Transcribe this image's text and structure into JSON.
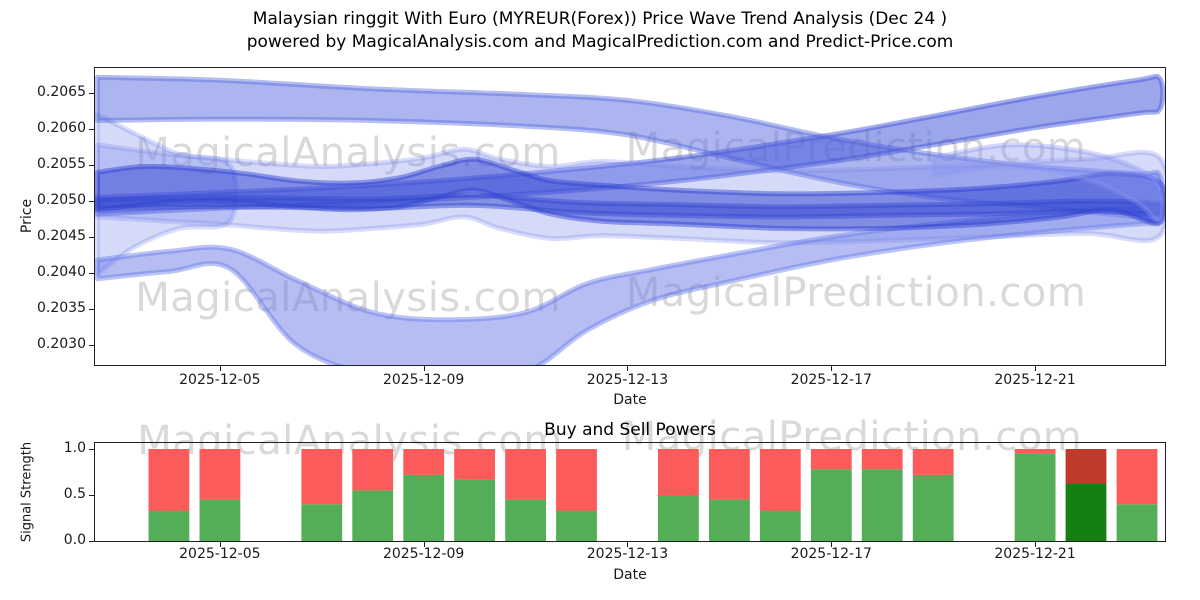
{
  "title": {
    "line1": "Malaysian ringgit With Euro (MYREUR(Forex)) Price Wave Trend Analysis (Dec 24 )",
    "line2": "powered by MagicalAnalysis.com and MagicalPrediction.com and Predict-Price.com"
  },
  "watermark": {
    "analysis": "MagicalAnalysis.com",
    "prediction": "MagicalPrediction.com"
  },
  "chart_data": [
    {
      "id": "price-wave-trend",
      "type": "area",
      "title": "",
      "xlabel": "Date",
      "ylabel": "Price",
      "x_domain_days": [
        2.55,
        23.55
      ],
      "ylim": [
        0.20272,
        0.20685
      ],
      "yticks": [
        0.203,
        0.2035,
        0.204,
        0.2045,
        0.205,
        0.2055,
        0.206,
        0.2065
      ],
      "xticks": [
        {
          "day": 5,
          "label": "2025-12-05"
        },
        {
          "day": 9,
          "label": "2025-12-09"
        },
        {
          "day": 13,
          "label": "2025-12-13"
        },
        {
          "day": 17,
          "label": "2025-12-17"
        },
        {
          "day": 21,
          "label": "2025-12-21"
        }
      ],
      "bands": [
        {
          "name": "left-fan",
          "color": "#7b8ced",
          "opacity": 0.32,
          "days": [
            2.6,
            3.3,
            4.2,
            5.2
          ],
          "hi": [
            0.2062,
            0.20595,
            0.20565,
            0.2055
          ],
          "lo": [
            0.20398,
            0.20435,
            0.20462,
            0.20472
          ]
        },
        {
          "name": "upper-descending",
          "color": "#5a6cdf",
          "opacity": 0.5,
          "days": [
            2.6,
            5,
            8,
            11,
            13,
            15,
            17,
            19,
            21,
            23,
            23.45
          ],
          "hi": [
            0.20672,
            0.20668,
            0.20656,
            0.20648,
            0.2064,
            0.20618,
            0.20588,
            0.20565,
            0.20548,
            0.20538,
            0.20535
          ],
          "lo": [
            0.20612,
            0.20614,
            0.20612,
            0.20604,
            0.20592,
            0.2056,
            0.20528,
            0.20505,
            0.20492,
            0.20478,
            0.20475
          ]
        },
        {
          "name": "ascending",
          "color": "#4a5cdb",
          "opacity": 0.55,
          "days": [
            2.6,
            5,
            8,
            11,
            14,
            17,
            19,
            21,
            23,
            23.45
          ],
          "hi": [
            0.20505,
            0.20512,
            0.20522,
            0.20538,
            0.2056,
            0.20592,
            0.20618,
            0.20645,
            0.20668,
            0.2067
          ],
          "lo": [
            0.20482,
            0.2049,
            0.20498,
            0.2051,
            0.20528,
            0.20555,
            0.20578,
            0.20602,
            0.20622,
            0.20628
          ]
        },
        {
          "name": "deep-dip",
          "color": "#6b7ce8",
          "opacity": 0.5,
          "days": [
            2.6,
            4,
            5.2,
            6.5,
            8,
            9.5,
            11,
            12.2,
            13.5,
            15,
            17,
            19,
            21,
            23,
            23.45
          ],
          "hi": [
            0.20418,
            0.2043,
            0.20433,
            0.2039,
            0.20345,
            0.20335,
            0.20345,
            0.20385,
            0.20405,
            0.20425,
            0.2045,
            0.20468,
            0.20482,
            0.20492,
            0.20493
          ],
          "lo": [
            0.20392,
            0.20402,
            0.20406,
            0.203,
            0.20258,
            0.2025,
            0.20262,
            0.2032,
            0.20362,
            0.20388,
            0.20418,
            0.2044,
            0.20456,
            0.20468,
            0.2047
          ]
        },
        {
          "name": "mid-cluster",
          "color": "#7583ea",
          "opacity": 0.3,
          "days": [
            2.6,
            4,
            5,
            6,
            7,
            8,
            9,
            9.8,
            10.5,
            11.5,
            12.5,
            14,
            16,
            18,
            20,
            22,
            23.45
          ],
          "hi": [
            0.20578,
            0.20565,
            0.20558,
            0.20552,
            0.20548,
            0.20552,
            0.2056,
            0.20572,
            0.20558,
            0.20548,
            0.20555,
            0.20548,
            0.20542,
            0.20545,
            0.2055,
            0.20558,
            0.2056
          ],
          "lo": [
            0.20478,
            0.20472,
            0.20468,
            0.20462,
            0.20458,
            0.20462,
            0.20468,
            0.20478,
            0.20462,
            0.20448,
            0.20452,
            0.20448,
            0.20442,
            0.20445,
            0.2045,
            0.20455,
            0.20452
          ]
        },
        {
          "name": "core",
          "color": "#2d3fd1",
          "opacity": 0.5,
          "days": [
            2.6,
            3.5,
            4.5,
            5.5,
            6.5,
            7.5,
            8.5,
            9.3,
            10,
            10.8,
            11.5,
            12.5,
            14,
            16,
            18,
            20,
            21.5,
            22.5,
            23.45
          ],
          "hi": [
            0.2054,
            0.20548,
            0.20545,
            0.20538,
            0.20528,
            0.20525,
            0.20532,
            0.20548,
            0.20558,
            0.20542,
            0.20528,
            0.20522,
            0.20515,
            0.2051,
            0.20512,
            0.20518,
            0.20528,
            0.20538,
            0.20525
          ],
          "lo": [
            0.20488,
            0.20495,
            0.205,
            0.20498,
            0.20492,
            0.20488,
            0.20492,
            0.20505,
            0.20515,
            0.20498,
            0.20482,
            0.20472,
            0.20468,
            0.20462,
            0.20462,
            0.20468,
            0.20478,
            0.20488,
            0.2047
          ]
        },
        {
          "name": "narrow-line",
          "color": "#3347cf",
          "opacity": 0.5,
          "days": [
            2.6,
            5,
            8,
            10,
            12,
            14,
            16,
            18,
            20,
            22,
            23.45
          ],
          "hi": [
            0.20502,
            0.20505,
            0.20503,
            0.20508,
            0.20498,
            0.20495,
            0.20492,
            0.20494,
            0.20496,
            0.205,
            0.20496
          ],
          "lo": [
            0.2049,
            0.20492,
            0.2049,
            0.20494,
            0.20484,
            0.2048,
            0.20478,
            0.2048,
            0.20482,
            0.20486,
            0.20482
          ]
        },
        {
          "name": "right-hook",
          "color": "#8b97f0",
          "opacity": 0.4,
          "days": [
            19,
            20.5,
            22,
            23,
            23.45
          ],
          "hi": [
            0.2056,
            0.20578,
            0.20568,
            0.20545,
            0.2052
          ],
          "lo": [
            0.20535,
            0.20548,
            0.2053,
            0.20498,
            0.20472
          ]
        }
      ]
    },
    {
      "id": "buy-sell-powers",
      "type": "bar",
      "title": "Buy and Sell Powers",
      "xlabel": "Date",
      "ylabel": "Signal Strength",
      "x_domain_days": [
        2.55,
        23.55
      ],
      "ylim": [
        0,
        1.065
      ],
      "yticks": [
        0.0,
        0.5,
        1.0
      ],
      "xticks": [
        {
          "day": 5,
          "label": "2025-12-05"
        },
        {
          "day": 9,
          "label": "2025-12-09"
        },
        {
          "day": 13,
          "label": "2025-12-13"
        },
        {
          "day": 17,
          "label": "2025-12-17"
        },
        {
          "day": 21,
          "label": "2025-12-21"
        }
      ],
      "bar_width_days": 0.8,
      "default_colors": {
        "buy": "#53ae57",
        "sell": "#fc5b5b"
      },
      "bars": [
        {
          "date": "2025-12-04",
          "day": 4,
          "buy": 0.33,
          "sell": 0.67
        },
        {
          "date": "2025-12-05",
          "day": 5,
          "buy": 0.45,
          "sell": 0.55
        },
        {
          "date": "2025-12-07",
          "day": 7,
          "buy": 0.4,
          "sell": 0.6
        },
        {
          "date": "2025-12-08",
          "day": 8,
          "buy": 0.55,
          "sell": 0.45
        },
        {
          "date": "2025-12-09",
          "day": 9,
          "buy": 0.72,
          "sell": 0.28
        },
        {
          "date": "2025-12-10",
          "day": 10,
          "buy": 0.67,
          "sell": 0.33
        },
        {
          "date": "2025-12-11",
          "day": 11,
          "buy": 0.45,
          "sell": 0.55
        },
        {
          "date": "2025-12-12",
          "day": 12,
          "buy": 0.33,
          "sell": 0.67
        },
        {
          "date": "2025-12-14",
          "day": 14,
          "buy": 0.5,
          "sell": 0.5
        },
        {
          "date": "2025-12-15",
          "day": 15,
          "buy": 0.45,
          "sell": 0.55
        },
        {
          "date": "2025-12-16",
          "day": 16,
          "buy": 0.33,
          "sell": 0.67
        },
        {
          "date": "2025-12-17",
          "day": 17,
          "buy": 0.78,
          "sell": 0.22
        },
        {
          "date": "2025-12-18",
          "day": 18,
          "buy": 0.78,
          "sell": 0.22
        },
        {
          "date": "2025-12-19",
          "day": 19,
          "buy": 0.72,
          "sell": 0.28
        },
        {
          "date": "2025-12-21",
          "day": 21,
          "buy": 0.95,
          "sell": 0.05
        },
        {
          "date": "2025-12-22",
          "day": 22,
          "buy": 0.62,
          "sell": 0.38,
          "buy_color": "#148014",
          "sell_color": "#c0392b"
        },
        {
          "date": "2025-12-23",
          "day": 23,
          "buy": 0.4,
          "sell": 0.6
        }
      ]
    }
  ]
}
